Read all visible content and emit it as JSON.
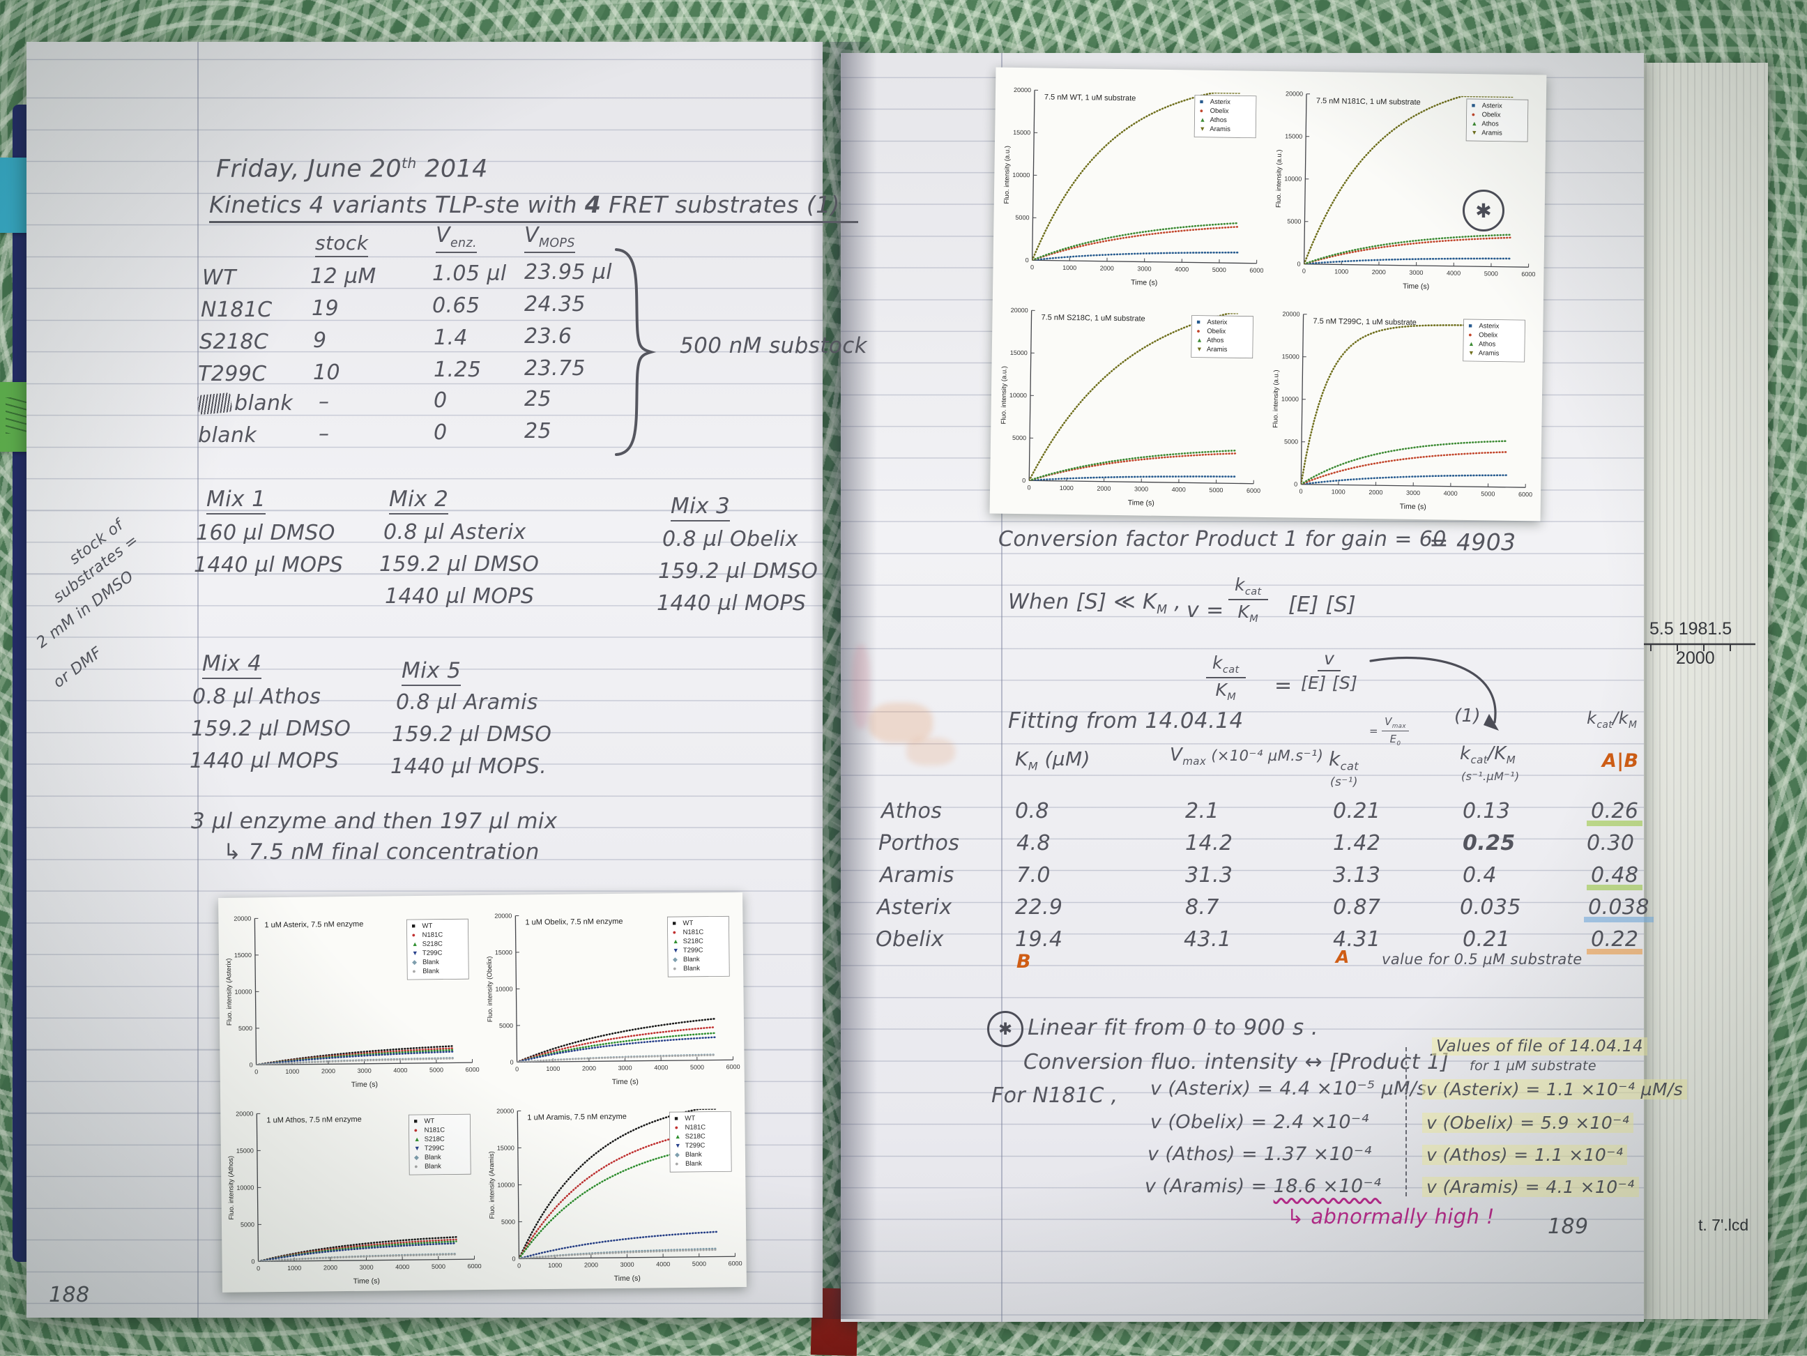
{
  "left": {
    "date": {
      "pre": "Friday, June 20",
      "sup": "th",
      "post": " 2014"
    },
    "title": {
      "pre": "Kinetics  4 variants TLP-ste  with ",
      "num": "4",
      "post": " FRET substrates (1)"
    },
    "enzyme_table": {
      "headers": {
        "stock": "stock",
        "venz_base": "V",
        "venz_sub": "enz.",
        "vmops_base": "V",
        "vmops_sub": "MOPS"
      },
      "rows": [
        {
          "name": "WT",
          "stock": "12 µM",
          "venz": "1.05 µl",
          "vmops": "23.95 µl"
        },
        {
          "name": "N181C",
          "stock": "19",
          "venz": "0.65",
          "vmops": "24.35"
        },
        {
          "name": "S218C",
          "stock": "9",
          "venz": "1.4",
          "vmops": "23.6"
        },
        {
          "name": "T299C",
          "stock": "10",
          "venz": "1.25",
          "vmops": "23.75"
        },
        {
          "name": "blank",
          "stock": "–",
          "venz": "0",
          "vmops": "25"
        },
        {
          "name": "blank",
          "stock": "–",
          "venz": "0",
          "vmops": "25"
        }
      ],
      "brace_note": "500 nM substock"
    },
    "margin_note": [
      "stock of",
      "substrates =",
      "2 mM in DMSO",
      "or DMF"
    ],
    "mixes": [
      {
        "label": "Mix 1",
        "items": [
          "160 µl DMSO",
          "1440 µl MOPS"
        ]
      },
      {
        "label": "Mix 2",
        "items": [
          "0.8 µl Asterix",
          "159.2 µl DMSO",
          "1440 µl MOPS"
        ]
      },
      {
        "label": "Mix 3",
        "items": [
          "0.8 µl Obelix",
          "159.2 µl DMSO",
          "1440 µl MOPS"
        ]
      },
      {
        "label": "Mix 4",
        "items": [
          "0.8 µl Athos",
          "159.2 µl DMSO",
          "1440 µl MOPS"
        ]
      },
      {
        "label": "Mix 5",
        "items": [
          "0.8 µl Aramis",
          "159.2 µl DMSO",
          "1440 µl MOPS."
        ]
      }
    ],
    "protocol": {
      "line1": "3 µl enzyme and then 197 µl mix",
      "line2": "↳ 7.5 nM final concentration"
    },
    "page_number": "188"
  },
  "right": {
    "conversion": {
      "text": "Conversion factor Product 1 for gain = 60",
      "value": "= 4903"
    },
    "eq1": {
      "when": "When  [S] ≪ K",
      "when_sub": "M",
      "when_post": " ,",
      "lhs": "v  =",
      "frac_top_base": "k",
      "frac_top_sub": "cat",
      "frac_bot_base": "K",
      "frac_bot_sub": "M",
      "rhs": "[E] [S]"
    },
    "eq2": {
      "lt_base": "k",
      "lt_sub": "cat",
      "lb_base": "K",
      "lb_sub": "M",
      "equals": "=",
      "rt": "v",
      "rb": "[E] [S]",
      "ref": "(1)"
    },
    "fitting": {
      "title": "Fitting  from  14.04.14",
      "headers": {
        "km": {
          "base": "K",
          "sub": "M",
          "rest": " (µM)"
        },
        "vmax": {
          "base": "V",
          "sub": "max",
          "rest": " (×10⁻⁴ µM.s⁻¹)"
        },
        "kcat": {
          "base": "k",
          "sub": "cat",
          "unit": "(s⁻¹)",
          "note_eq": "=",
          "note_top_base": "V",
          "note_top_sub": "max",
          "note_bot_base": "E",
          "note_bot_sub": "0"
        },
        "kcatkm": {
          "base": "k",
          "sub": "cat",
          "slash": "/K",
          "slash_sub": "M",
          "unit": "(s⁻¹.µM⁻¹)"
        },
        "ab": {
          "base": "k",
          "sub": "cat",
          "slash": "/k",
          "slash_sub": "M",
          "mark": "A|B"
        }
      },
      "rows": [
        {
          "name": "Athos",
          "km": "0.8",
          "vmax": "2.1",
          "kcat": "0.21",
          "kk": "0.13",
          "ab": "0.26"
        },
        {
          "name": "Porthos",
          "km": "4.8",
          "vmax": "14.2",
          "kcat": "1.42",
          "kk": "0.25",
          "ab": "0.30"
        },
        {
          "name": "Aramis",
          "km": "7.0",
          "vmax": "31.3",
          "kcat": "3.13",
          "kk": "0.4",
          "ab": "0.48"
        },
        {
          "name": "Asterix",
          "km": "22.9",
          "vmax": "8.7",
          "kcat": "0.87",
          "kk": "0.035",
          "ab": "0.038"
        },
        {
          "name": "Obelix",
          "km": "19.4",
          "vmax": "43.1",
          "kcat": "4.31",
          "kk": "0.21",
          "ab": "0.22"
        }
      ],
      "mark_b": "B",
      "mark_a": "A",
      "note": "value for 0.5 µM substrate"
    },
    "linear_fit": {
      "star": "✱",
      "heading": "Linear fit  from  0 to 900 s .",
      "sub": "Conversion fluo. intensity ↔ [Product 1]",
      "for_label": "For   N181C ,",
      "left_values": [
        {
          "pre": "v (Asterix) = ",
          "val": "4.4 ×10⁻⁵ µM/s"
        },
        {
          "pre": "v (Obelix) = ",
          "val": "2.4 ×10⁻⁴"
        },
        {
          "pre": "v (Athos) = ",
          "val": "1.37 ×10⁻⁴"
        },
        {
          "pre": "v (Aramis) = ",
          "val": "18.6 ×10⁻⁴"
        }
      ],
      "right_header1": "Values of file of 14.04.14",
      "right_header2": "for 1 µM substrate",
      "right_values": [
        "v (Asterix) = 1.1 ×10⁻⁴ µM/s",
        "v (Obelix) = 5.9 ×10⁻⁴",
        "v (Athos) = 1.1 ×10⁻⁴",
        "v (Aramis) = 4.1 ×10⁻⁴"
      ],
      "footnote": "↳ abnormally  high !"
    },
    "page_number": "189"
  },
  "edge_fragments": {
    "f1": "5.5  1981.5",
    "f2": "2000",
    "f3": "t. 7'.lcd"
  },
  "annotation_star": "✱",
  "chart_data": [
    {
      "id": "variants-printout",
      "type": "line",
      "xlabel": "Time (s)",
      "xlim": [
        0,
        6000
      ],
      "ylim": [
        0,
        20000
      ],
      "x_ticks": [
        0,
        1000,
        2000,
        3000,
        4000,
        5000,
        6000
      ],
      "y_ticks": [
        0,
        5000,
        10000,
        15000,
        20000
      ],
      "legend_pos": "top-right",
      "grid": false,
      "model": "y = plateau*(1-exp(-t/tau)), t in s",
      "subplots": [
        {
          "title": "7.5 nM WT, 1 uM substrate",
          "ylabel": "Fluo. intensity (a.u.)",
          "series": [
            {
              "name": "Asterix",
              "marker": "■",
              "color": "#275b8f",
              "plateau": 1400,
              "tau": 2500
            },
            {
              "name": "Obelix",
              "marker": "●",
              "color": "#c2452b",
              "plateau": 5200,
              "tau": 3200
            },
            {
              "name": "Athos",
              "marker": "▲",
              "color": "#3c8a33",
              "plateau": 5600,
              "tau": 3000
            },
            {
              "name": "Aramis",
              "marker": "▼",
              "color": "#70701e",
              "plateau": 22000,
              "tau": 2000
            }
          ]
        },
        {
          "title": "7.5 nM N181C, 1 uM substrate",
          "ylabel": "Fluo. intensity (a.u.)",
          "series": [
            {
              "name": "Asterix",
              "marker": "■",
              "color": "#275b8f",
              "plateau": 1100,
              "tau": 2500
            },
            {
              "name": "Obelix",
              "marker": "●",
              "color": "#c2452b",
              "plateau": 4000,
              "tau": 2800
            },
            {
              "name": "Athos",
              "marker": "▲",
              "color": "#3c8a33",
              "plateau": 4300,
              "tau": 2600
            },
            {
              "name": "Aramis",
              "marker": "▼",
              "color": "#70701e",
              "plateau": 22500,
              "tau": 1900
            }
          ]
        },
        {
          "title": "7.5 nM S218C, 1 uM substrate",
          "ylabel": "Fluo. intensity (a.u.)",
          "series": [
            {
              "name": "Asterix",
              "marker": "■",
              "color": "#275b8f",
              "plateau": 900,
              "tau": 2500
            },
            {
              "name": "Obelix",
              "marker": "●",
              "color": "#c2452b",
              "plateau": 4200,
              "tau": 3000
            },
            {
              "name": "Athos",
              "marker": "▲",
              "color": "#3c8a33",
              "plateau": 4600,
              "tau": 3000
            },
            {
              "name": "Aramis",
              "marker": "▼",
              "color": "#70701e",
              "plateau": 23000,
              "tau": 2600
            }
          ]
        },
        {
          "title": "7.5 nM T299C, 1 uM substrate",
          "ylabel": "Fluo. intensity (a.u.)",
          "series": [
            {
              "name": "Asterix",
              "marker": "■",
              "color": "#275b8f",
              "plateau": 1600,
              "tau": 2600
            },
            {
              "name": "Obelix",
              "marker": "●",
              "color": "#c2452b",
              "plateau": 4600,
              "tau": 2400
            },
            {
              "name": "Athos",
              "marker": "▲",
              "color": "#3c8a33",
              "plateau": 5800,
              "tau": 2000
            },
            {
              "name": "Aramis",
              "marker": "▼",
              "color": "#70701e",
              "plateau": 19000,
              "tau": 650
            }
          ]
        }
      ]
    },
    {
      "id": "substrates-printout",
      "type": "line",
      "xlabel": "Time (s)",
      "xlim": [
        0,
        6000
      ],
      "ylim": [
        0,
        20000
      ],
      "x_ticks": [
        0,
        1000,
        2000,
        3000,
        4000,
        5000,
        6000
      ],
      "y_ticks": [
        0,
        5000,
        10000,
        15000,
        20000
      ],
      "legend_pos": "top-right",
      "grid": false,
      "model": "y = plateau*(1-exp(-t/tau)), t in s",
      "subplots": [
        {
          "title": "1 uM Asterix, 7.5 nM enzyme",
          "ylabel": "Fluo. intensity (Asterix)",
          "series": [
            {
              "name": "WT",
              "marker": "■",
              "color": "#1a1a1a",
              "plateau": 3000,
              "tau": 3800
            },
            {
              "name": "N181C",
              "marker": "●",
              "color": "#c03030",
              "plateau": 2600,
              "tau": 3800
            },
            {
              "name": "S218C",
              "marker": "▲",
              "color": "#2f8f2f",
              "plateau": 2300,
              "tau": 3800
            },
            {
              "name": "T299C",
              "marker": "▼",
              "color": "#27408b",
              "plateau": 2000,
              "tau": 3800
            },
            {
              "name": "Blank",
              "marker": "◆",
              "color": "#7f9fae",
              "plateau": 800,
              "tau": 3000
            },
            {
              "name": "Blank",
              "marker": "●",
              "color": "#a8a8a8",
              "plateau": 700,
              "tau": 3000
            }
          ]
        },
        {
          "title": "1 uM Obelix, 7.5 nM enzyme",
          "ylabel": "Fluo. intensity (Obelix)",
          "series": [
            {
              "name": "WT",
              "marker": "■",
              "color": "#1a1a1a",
              "plateau": 7200,
              "tau": 3600
            },
            {
              "name": "N181C",
              "marker": "●",
              "color": "#c03030",
              "plateau": 5600,
              "tau": 3400
            },
            {
              "name": "S218C",
              "marker": "▲",
              "color": "#2f8f2f",
              "plateau": 4600,
              "tau": 3400
            },
            {
              "name": "T299C",
              "marker": "▼",
              "color": "#27408b",
              "plateau": 3800,
              "tau": 3200
            },
            {
              "name": "Blank",
              "marker": "◆",
              "color": "#7f9fae",
              "plateau": 900,
              "tau": 3000
            },
            {
              "name": "Blank",
              "marker": "●",
              "color": "#a8a8a8",
              "plateau": 800,
              "tau": 3000
            }
          ]
        },
        {
          "title": "1 uM Athos, 7.5 nM enzyme",
          "ylabel": "Fluo. intensity (Athos)",
          "series": [
            {
              "name": "WT",
              "marker": "■",
              "color": "#1a1a1a",
              "plateau": 3600,
              "tau": 3000
            },
            {
              "name": "N181C",
              "marker": "●",
              "color": "#c03030",
              "plateau": 3200,
              "tau": 3000
            },
            {
              "name": "S218C",
              "marker": "▲",
              "color": "#2f8f2f",
              "plateau": 2900,
              "tau": 3000
            },
            {
              "name": "T299C",
              "marker": "▼",
              "color": "#27408b",
              "plateau": 2600,
              "tau": 3000
            },
            {
              "name": "Blank",
              "marker": "◆",
              "color": "#7f9fae",
              "plateau": 900,
              "tau": 3000
            },
            {
              "name": "Blank",
              "marker": "●",
              "color": "#a8a8a8",
              "plateau": 800,
              "tau": 3000
            }
          ]
        },
        {
          "title": "1 uM Aramis, 7.5 nM enzyme",
          "ylabel": "Fluo. intensity (Aramis)",
          "series": [
            {
              "name": "WT",
              "marker": "■",
              "color": "#1a1a1a",
              "plateau": 22000,
              "tau": 2100
            },
            {
              "name": "N181C",
              "marker": "●",
              "color": "#c03030",
              "plateau": 19000,
              "tau": 2300
            },
            {
              "name": "S218C",
              "marker": "▲",
              "color": "#2f8f2f",
              "plateau": 17000,
              "tau": 2500
            },
            {
              "name": "T299C",
              "marker": "▼",
              "color": "#27408b",
              "plateau": 4000,
              "tau": 3000
            },
            {
              "name": "Blank",
              "marker": "◆",
              "color": "#7f9fae",
              "plateau": 1300,
              "tau": 3000
            },
            {
              "name": "Blank",
              "marker": "●",
              "color": "#a8a8a8",
              "plateau": 1100,
              "tau": 3000
            }
          ]
        }
      ]
    }
  ]
}
